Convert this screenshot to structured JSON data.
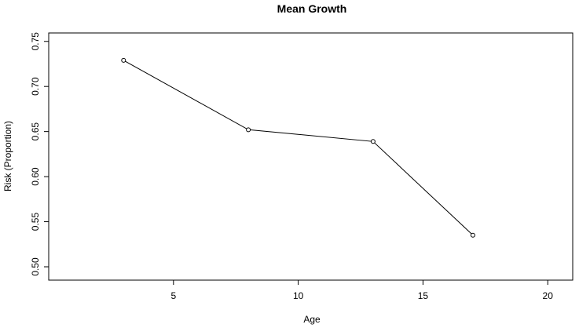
{
  "chart_data": {
    "type": "line",
    "title": "Mean Growth",
    "xlabel": "Age",
    "ylabel": "Risk (Proportion)",
    "xlim": [
      0,
      21
    ],
    "ylim": [
      0.5,
      0.755
    ],
    "x_ticks": [
      5,
      10,
      15,
      20
    ],
    "y_ticks": [
      0.5,
      0.55,
      0.6,
      0.65,
      0.7,
      0.75
    ],
    "x_tick_labels": [
      "5",
      "10",
      "15",
      "20"
    ],
    "y_tick_labels": [
      "0.50",
      "0.55",
      "0.60",
      "0.65",
      "0.70",
      "0.75"
    ],
    "grid": false,
    "legend": "none",
    "series": [
      {
        "marker": "open-circle",
        "color": "#000000",
        "x": [
          3,
          8,
          13,
          17
        ],
        "y": [
          0.729,
          0.652,
          0.639,
          0.535
        ]
      }
    ]
  }
}
